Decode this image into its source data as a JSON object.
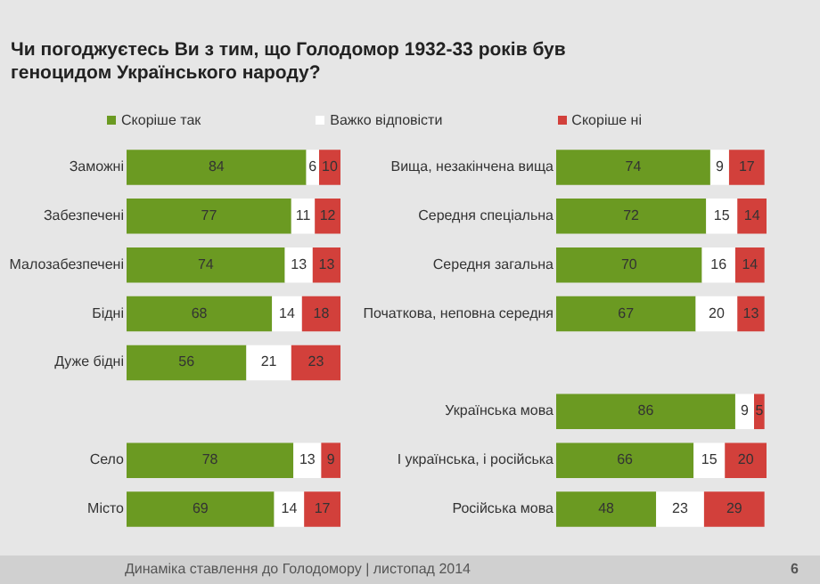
{
  "chart_data": [
    {
      "type": "bar",
      "orientation": "horizontal",
      "stacked": true,
      "data_labels": true,
      "legend": "top",
      "tick_labels": "y",
      "title": "Чи погоджуєтесь Ви з тим, що Голодомор 1932-33 років був геноцидом Українського народу?",
      "categories": [
        "Заможні",
        "Забезпечені",
        "Малозабезпечені",
        "Бідні",
        "Дуже бідні",
        null,
        "Село",
        "Місто"
      ],
      "series": [
        {
          "name": "Скоріше так",
          "color": "#6b9a22",
          "values": [
            84,
            77,
            74,
            68,
            56,
            null,
            78,
            69
          ]
        },
        {
          "name": "Важко відповісти",
          "color": "#ffffff",
          "values": [
            6,
            11,
            13,
            14,
            21,
            null,
            13,
            14
          ]
        },
        {
          "name": "Скоріше ні",
          "color": "#d2403b",
          "values": [
            10,
            12,
            13,
            18,
            23,
            null,
            9,
            17
          ]
        }
      ]
    },
    {
      "type": "bar",
      "orientation": "horizontal",
      "stacked": true,
      "data_labels": true,
      "tick_labels": "y",
      "annotations": [
        "Динаміка ставлення до Голодомору | листопад 2014",
        "6"
      ],
      "categories": [
        "Вища, незакінчена вища",
        "Середня спеціальна",
        "Середня загальна",
        "Початкова, неповна середня",
        null,
        "Українська мова",
        "І українська, і російська",
        "Російська мова"
      ],
      "series": [
        {
          "name": "Скоріше так",
          "color": "#6b9a22",
          "values": [
            74,
            72,
            70,
            67,
            null,
            86,
            66,
            48
          ]
        },
        {
          "name": "Важко відповісти",
          "color": "#ffffff",
          "values": [
            9,
            15,
            16,
            20,
            null,
            9,
            15,
            23
          ]
        },
        {
          "name": "Скоріше ні",
          "color": "#d2403b",
          "values": [
            17,
            14,
            14,
            13,
            null,
            5,
            20,
            29
          ]
        }
      ]
    }
  ]
}
